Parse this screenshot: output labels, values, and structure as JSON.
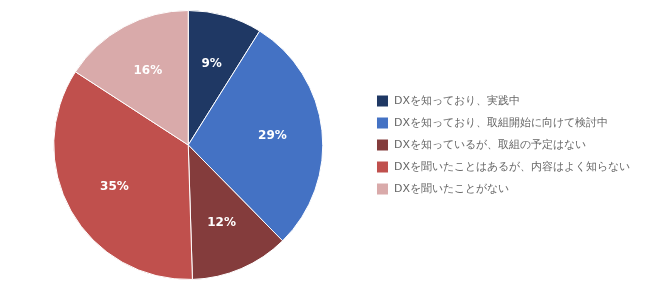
{
  "chart_data": {
    "type": "pie",
    "categories": [
      "DXを知っており、実践中",
      "DXを知っており、取組開始に向けて検討中",
      "DXを知っているが、取組の予定はない",
      "DXを聞いたことはあるが、内容はよく知らない",
      "DXを聞いたことがない"
    ],
    "values": [
      9,
      29,
      12,
      35,
      16
    ],
    "value_labels": [
      "9%",
      "29%",
      "12%",
      "35%",
      "16%"
    ],
    "colors": [
      "#1F3864",
      "#4472C4",
      "#843C3C",
      "#C0504D",
      "#D9AAAA"
    ],
    "data_labels": true,
    "legend": "right"
  }
}
